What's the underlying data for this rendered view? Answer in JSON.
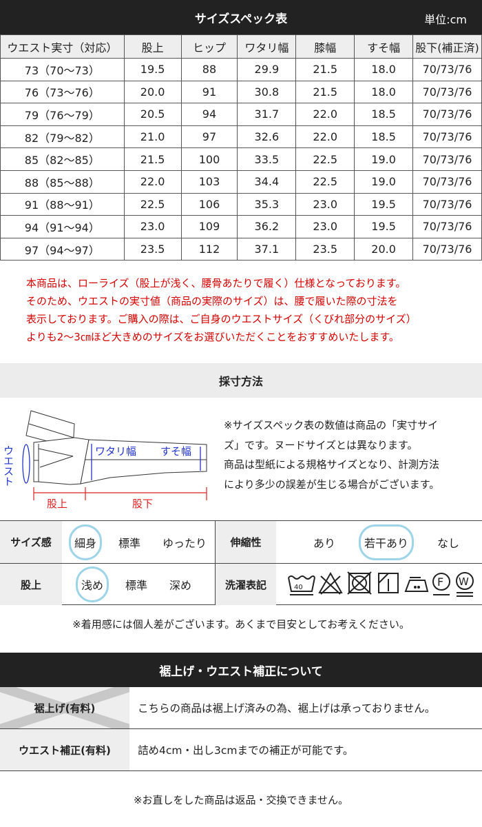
{
  "spec": {
    "title": "サイズスペック表",
    "unit": "単位:cm",
    "headers": [
      "ウエスト実寸（対応）",
      "股上",
      "ヒップ",
      "ワタリ幅",
      "膝幅",
      "すそ幅",
      "股下(補正済)"
    ],
    "rows": [
      [
        "73（70〜73）",
        "19.5",
        "88",
        "29.9",
        "21.5",
        "18.0",
        "70/73/76"
      ],
      [
        "76（73〜76）",
        "20.0",
        "91",
        "30.8",
        "21.5",
        "18.0",
        "70/73/76"
      ],
      [
        "79（76〜79）",
        "20.5",
        "94",
        "31.7",
        "22.0",
        "18.5",
        "70/73/76"
      ],
      [
        "82（79〜82）",
        "21.0",
        "97",
        "32.6",
        "22.0",
        "18.5",
        "70/73/76"
      ],
      [
        "85（82〜85）",
        "21.5",
        "100",
        "33.5",
        "22.5",
        "19.0",
        "70/73/76"
      ],
      [
        "88（85〜88）",
        "22.0",
        "103",
        "34.4",
        "22.5",
        "19.0",
        "70/73/76"
      ],
      [
        "91（88〜91）",
        "22.5",
        "106",
        "35.3",
        "23.0",
        "19.5",
        "70/73/76"
      ],
      [
        "94（91〜94）",
        "23.0",
        "109",
        "36.2",
        "23.0",
        "19.5",
        "70/73/76"
      ],
      [
        "97（94〜97）",
        "23.5",
        "112",
        "37.1",
        "23.5",
        "20.0",
        "70/73/76"
      ]
    ]
  },
  "red_note": [
    "本商品は、ローライズ（股上が浅く、腰骨あたりで履く）仕様となっております。",
    "そのため、ウエストの実寸値（商品の実際のサイズ）は、腰で履いた際の寸法を",
    "表示しております。ご購入の際は、ご自身のウエストサイズ（くびれ部分のサイズ）",
    "よりも2〜3㎝ほど大きめのサイズをお選びいただくことをおすすめいたします。"
  ],
  "measure": {
    "title": "採寸方法",
    "diagram_labels": {
      "waist": "ウエスト",
      "thigh": "ワタリ幅",
      "hem": "すそ幅",
      "rise": "股上",
      "inseam": "股下"
    },
    "note": [
      "※サイズスペック表の数値は商品の「実寸サイ",
      "ズ」です。ヌードサイズとは異なります。",
      "商品は型紙による規格サイズとなり、計測方法",
      "により多少の誤差が生じる場合がございます。"
    ]
  },
  "fit": {
    "size_feel": {
      "label": "サイズ感",
      "options": [
        "細身",
        "標準",
        "ゆったり"
      ],
      "selected": "細身"
    },
    "stretch": {
      "label": "伸縮性",
      "options": [
        "あり",
        "若干あり",
        "なし"
      ],
      "selected": "若干あり"
    },
    "rise": {
      "label": "股上",
      "options": [
        "浅め",
        "標準",
        "深め"
      ],
      "selected": "浅め"
    },
    "care": {
      "label": "洗濯表記",
      "icons": [
        "wash-40-icon",
        "no-bleach-icon",
        "no-tumble-dry-icon",
        "line-dry-shade-icon",
        "iron-low-icon",
        "dry-clean-f-icon",
        "wet-clean-w-icon"
      ],
      "wash_temp": "40"
    }
  },
  "fit_note": "※着用感には個人差がございます。あくまで目安としてお考えください。",
  "alter": {
    "title": "裾上げ・ウエスト補正について",
    "rows": [
      {
        "label": "裾上げ(有料)",
        "text": "こちらの商品は裾上げ済みの為、裾上げは承っておりません。",
        "unavailable": true
      },
      {
        "label": "ウエスト補正(有料)",
        "text": "詰め4cm・出し3cmまでの補正が可能です。"
      }
    ]
  },
  "footer_note": "※お直しをした商品は返品・交換できません。",
  "colors": {
    "header_bg": "#222222",
    "note_red": "#d40000",
    "selection_ring": "#9ed4e8",
    "diagram_blue": "#2233cc"
  }
}
